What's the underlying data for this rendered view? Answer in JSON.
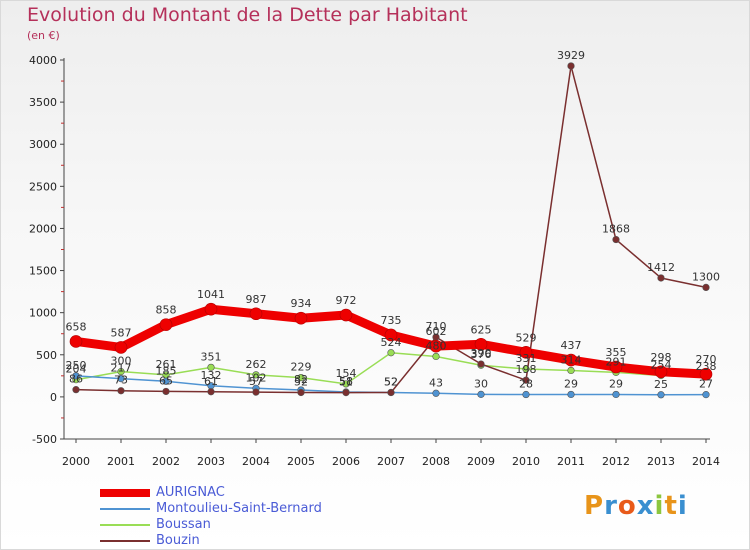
{
  "title": "Evolution du Montant de la Dette par Habitant",
  "subtitle": "(en €)",
  "logo": {
    "text": "Proxiti",
    "colors": [
      "#e8941a",
      "#3a8fd0",
      "#e85a1a",
      "#3a8fd0",
      "#8cc63f",
      "#e8941a",
      "#3a8fd0"
    ]
  },
  "chart_data": {
    "type": "line",
    "x": [
      "2000",
      "2001",
      "2002",
      "2003",
      "2004",
      "2005",
      "2006",
      "2007",
      "2008",
      "2009",
      "2010",
      "2011",
      "2012",
      "2013",
      "2014"
    ],
    "ylim": [
      -500,
      4000
    ],
    "yticks": [
      -500,
      0,
      500,
      1000,
      1500,
      2000,
      2500,
      3000,
      3500,
      4000
    ],
    "grid": false,
    "legend": "bottom-left",
    "series": [
      {
        "name": "AURIGNAC",
        "color": "#ee0000",
        "values": [
          658,
          587,
          858,
          1041,
          987,
          934,
          972,
          735,
          602,
          625,
          529,
          437,
          355,
          298,
          270
        ],
        "labels": [
          "658",
          "587",
          "858",
          "1041",
          "987",
          "934",
          "972",
          "735",
          "602",
          "625",
          "529",
          "437",
          "355",
          "298",
          "270"
        ]
      },
      {
        "name": "Montoulieu-Saint-Bernard",
        "color": "#4f93d2",
        "values": [
          250,
          217,
          185,
          132,
          102,
          82,
          58,
          52,
          43,
          30,
          28,
          29,
          29,
          25,
          27
        ],
        "labels": [
          "250",
          "217",
          "185",
          "132",
          "102",
          "82",
          "58",
          "52",
          "43",
          "30",
          "28",
          "29",
          "29",
          "25",
          "27"
        ]
      },
      {
        "name": "Boussan",
        "color": "#99dd55",
        "values": [
          204,
          300,
          261,
          351,
          262,
          229,
          154,
          524,
          480,
          376,
          331,
          314,
          291,
          254,
          238
        ],
        "labels": [
          "204",
          "300",
          "261",
          "351",
          "262",
          "229",
          "154",
          "524",
          "480",
          "376",
          "331",
          "314",
          "291",
          "254",
          "238"
        ]
      },
      {
        "name": "Bouzin",
        "color": "#7a2f2f",
        "values": [
          86,
          73,
          65,
          61,
          57,
          52,
          51,
          52,
          710,
          390,
          198,
          3929,
          1868,
          1412,
          1300
        ],
        "labels": [
          "86",
          "73",
          "65",
          "61",
          "57",
          "52",
          "51",
          "52",
          "710",
          "390",
          "198",
          "3929",
          "1868",
          "1412",
          "1300"
        ]
      }
    ]
  }
}
